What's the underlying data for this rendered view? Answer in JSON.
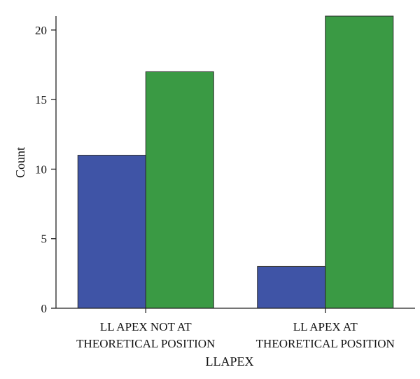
{
  "chart_data": {
    "type": "bar",
    "title": "",
    "xlabel": "LLAPEX",
    "ylabel": "Count",
    "categories": [
      [
        "LL APEX NOT AT",
        "THEORETICAL POSITION"
      ],
      [
        "LL APEX AT",
        "THEORETICAL POSITION"
      ]
    ],
    "series": [
      {
        "values": [
          11,
          3
        ],
        "color": "#3f54a6"
      },
      {
        "values": [
          17,
          21
        ],
        "color": "#3a9a44"
      }
    ],
    "ylim": [
      0,
      21
    ],
    "yticks": [
      "0",
      "5",
      "10",
      "15",
      "20"
    ],
    "grid": false,
    "legend": "none"
  }
}
